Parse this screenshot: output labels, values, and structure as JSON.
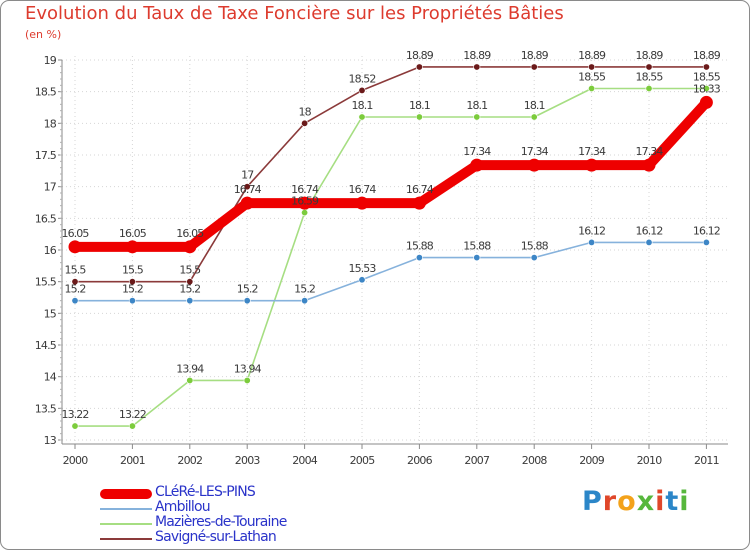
{
  "chart_data": {
    "type": "line",
    "title": "Evolution du Taux de Taxe Foncière sur les Propriétés Bâties",
    "ylabel": "(en %)",
    "xlabel": "",
    "ylim": [
      13,
      19
    ],
    "y_ticks": [
      "13",
      "13.5",
      "14",
      "14.5",
      "15",
      "15.5",
      "16",
      "16.5",
      "17",
      "17.5",
      "18",
      "18.5",
      "19"
    ],
    "categories": [
      "2000",
      "2001",
      "2002",
      "2003",
      "2004",
      "2005",
      "2006",
      "2007",
      "2008",
      "2009",
      "2010",
      "2011"
    ],
    "series": [
      {
        "name": "Savigné-sur-Lathan",
        "color": "#8b3a3a",
        "marker_color": "#6b1a1a",
        "values": [
          15.5,
          15.5,
          15.5,
          17,
          18,
          18.52,
          18.89,
          18.89,
          18.89,
          18.89,
          18.89,
          18.89
        ],
        "labels": [
          "15.5",
          "15.5",
          "15.5",
          "17",
          "18",
          "18.52",
          "18.89",
          "18.89",
          "18.89",
          "18.89",
          "18.89",
          "18.89"
        ]
      },
      {
        "name": "Mazières-de-Touraine",
        "color": "#a6de82",
        "marker_color": "#7ccc3c",
        "values": [
          13.22,
          13.22,
          13.94,
          13.94,
          16.59,
          18.1,
          18.1,
          18.1,
          18.1,
          18.55,
          18.55,
          18.55
        ],
        "labels": [
          "13.22",
          "13.22",
          "13.94",
          "13.94",
          "16.59",
          "18.1",
          "18.1",
          "18.1",
          "18.1",
          "18.55",
          "18.55",
          "18.55"
        ]
      },
      {
        "name": "Ambillou",
        "color": "#86b2dc",
        "marker_color": "#3d86c6",
        "values": [
          15.2,
          15.2,
          15.2,
          15.2,
          15.2,
          15.53,
          15.88,
          15.88,
          15.88,
          16.12,
          16.12,
          16.12
        ],
        "labels": [
          "15.2",
          "15.2",
          "15.2",
          "15.2",
          "15.2",
          "15.53",
          "15.88",
          "15.88",
          "15.88",
          "16.12",
          "16.12",
          "16.12"
        ]
      },
      {
        "name": "CLéRé-LES-PINS",
        "color": "#ee0000",
        "marker_color": "#ee0000",
        "values": [
          16.05,
          16.05,
          16.05,
          16.74,
          16.74,
          16.74,
          16.74,
          17.34,
          17.34,
          17.34,
          17.34,
          18.33
        ],
        "labels": [
          "16.05",
          "16.05",
          "16.05",
          "16.74",
          "16.74",
          "16.74",
          "16.74",
          "17.34",
          "17.34",
          "17.34",
          "17.34",
          "18.33"
        ]
      }
    ],
    "legend": [
      {
        "name": "CLéRé-LES-PINS",
        "color": "#ee0000"
      },
      {
        "name": "Ambillou",
        "color": "#86b2dc"
      },
      {
        "name": "Mazières-de-Touraine",
        "color": "#a6de82"
      },
      {
        "name": "Savigné-sur-Lathan",
        "color": "#8b3a3a"
      }
    ],
    "legend_position": "bottom-left"
  },
  "brand": {
    "letters": [
      "P",
      "r",
      "o",
      "x",
      "i",
      "t",
      "i"
    ],
    "colors": [
      "#2b86c8",
      "#e0472a",
      "#f3a21a",
      "#57b73c",
      "#e0472a",
      "#2b86c8",
      "#57b73c"
    ]
  }
}
